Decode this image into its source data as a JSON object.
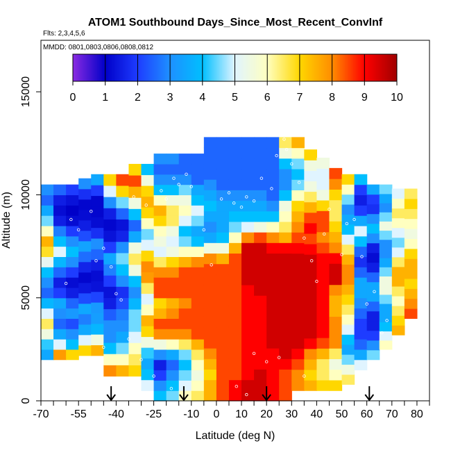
{
  "chart_data": {
    "type": "heatmap",
    "title": "ATOM1 Southbound Days_Since_Most_Recent_ConvInf",
    "subtitle": "Flts: 2,3,4,5,6",
    "annotation": "MMDD: 0801,0803,0806,0808,0812",
    "xlabel": "Latitude (deg N)",
    "ylabel": "Altitude (m)",
    "xlim": [
      -70,
      85
    ],
    "ylim": [
      0,
      17500
    ],
    "x_ticks": [
      -70,
      -55,
      -40,
      -25,
      -10,
      0,
      10,
      20,
      30,
      40,
      50,
      60,
      70,
      80
    ],
    "y_ticks": [
      0,
      5000,
      10000,
      15000
    ],
    "colorbar": {
      "min": 0,
      "max": 10,
      "ticks": [
        0,
        1,
        2,
        3,
        4,
        5,
        6,
        7,
        8,
        9,
        10
      ],
      "colors": [
        "#8a2be2",
        "#0000c8",
        "#1e3cff",
        "#1e90ff",
        "#00bfff",
        "#e0f4ff",
        "#ffffc0",
        "#ffd700",
        "#ff8c00",
        "#ff0000",
        "#a00000"
      ]
    },
    "arrow_latitudes": [
      -42,
      -13,
      20,
      61
    ],
    "colors": {
      "axis": "#000000",
      "background": "#ffffff",
      "sample_marker": "#ffffff"
    },
    "profiles": [
      {
        "lat": -67.5,
        "alt_min": 2000,
        "alt_max": 10500,
        "values": [
          3.5,
          4.2,
          5.5,
          6.5,
          5,
          3.8,
          2.5,
          3,
          4,
          5.2,
          6.8,
          7.5,
          6,
          4.5,
          3.5,
          2.5,
          3
        ]
      },
      {
        "lat": -62.5,
        "alt_min": 2000,
        "alt_max": 10500,
        "values": [
          7.8,
          5,
          3.5,
          2.5,
          3,
          3.5,
          2,
          1.5,
          2.5,
          3.8,
          5,
          4,
          2.8,
          1.5,
          1.2,
          1.5,
          2.5
        ]
      },
      {
        "lat": -57.5,
        "alt_min": 2000,
        "alt_max": 10500,
        "values": [
          7,
          4,
          3,
          2.2,
          3.2,
          2.5,
          1.5,
          1.2,
          2,
          3,
          4,
          3,
          2,
          1.2,
          1,
          1.3,
          2
        ]
      },
      {
        "lat": -52.5,
        "alt_min": 2200,
        "alt_max": 10800,
        "values": [
          7,
          5,
          3.5,
          2.8,
          3.5,
          2.2,
          1.4,
          1.1,
          1.6,
          2.6,
          3.4,
          2.2,
          1.5,
          1.2,
          1.1,
          1.8,
          3
        ]
      },
      {
        "lat": -47.5,
        "alt_min": 2200,
        "alt_max": 11000,
        "values": [
          7.5,
          5.5,
          3.8,
          3.3,
          3.2,
          2.1,
          1.3,
          1.2,
          1.5,
          2.5,
          3,
          1.8,
          1.2,
          1.1,
          1.1,
          2,
          3.5
        ]
      },
      {
        "lat": -42.5,
        "alt_min": 1200,
        "alt_max": 11000,
        "values": [
          8,
          6,
          4,
          3,
          3,
          2.4,
          1.5,
          1.3,
          2,
          2.8,
          3.5,
          2,
          1.3,
          1.1,
          1.5,
          3,
          5,
          7
        ]
      },
      {
        "lat": -37.5,
        "alt_min": 1200,
        "alt_max": 11000,
        "values": [
          7.5,
          6,
          4.5,
          3.5,
          3,
          2.8,
          2.2,
          1.8,
          3,
          4,
          4.5,
          3,
          1.6,
          1.3,
          2.5,
          4.5,
          7,
          8.5
        ]
      },
      {
        "lat": -32.5,
        "alt_min": 1200,
        "alt_max": 11500,
        "values": [
          7,
          6.5,
          6,
          5,
          4.5,
          4.5,
          3.8,
          3,
          4,
          5.5,
          6.5,
          5.5,
          3.5,
          2.5,
          4,
          5.5,
          7.5,
          8.5,
          7
        ]
      },
      {
        "lat": -27.5,
        "alt_min": 500,
        "alt_max": 11500,
        "values": [
          5,
          4,
          3.5,
          4.2,
          5.5,
          7,
          7.5,
          6,
          5,
          6.5,
          7.8,
          8,
          7,
          5,
          4.5,
          6,
          7,
          7.5,
          7,
          5.5,
          4
        ]
      },
      {
        "lat": -22.5,
        "alt_min": 0,
        "alt_max": 12000,
        "values": [
          4,
          3,
          2,
          1.5,
          3,
          5.5,
          8,
          8.5,
          7.5,
          7,
          8.5,
          8.5,
          8,
          6.5,
          5,
          5.5,
          6,
          7,
          7.5,
          6,
          4,
          3,
          2.5,
          3
        ]
      },
      {
        "lat": -17.5,
        "alt_min": 0,
        "alt_max": 12000,
        "values": [
          4.5,
          4,
          3,
          2.5,
          3.5,
          6,
          8,
          8.5,
          8,
          7.5,
          8.5,
          8.5,
          8,
          7,
          5.5,
          5,
          5.5,
          6.5,
          6.5,
          5.5,
          4,
          3,
          2.5,
          3
        ]
      },
      {
        "lat": -12.5,
        "alt_min": 0,
        "alt_max": 12000,
        "values": [
          6,
          5,
          4.5,
          4,
          4.5,
          6.5,
          8,
          8.5,
          8.5,
          8,
          8.5,
          8.5,
          8.5,
          7.5,
          6,
          4.5,
          4,
          5,
          6,
          5.5,
          4.5,
          3,
          2.5,
          2.5
        ]
      },
      {
        "lat": -7.5,
        "alt_min": 0,
        "alt_max": 12000,
        "values": [
          6.5,
          6,
          5.5,
          6,
          6.5,
          7.5,
          8.5,
          8.5,
          8.5,
          8.5,
          8.5,
          8.5,
          8.5,
          8,
          6,
          4,
          3.5,
          4.5,
          5,
          4,
          3.5,
          2.5,
          2.5,
          2.5
        ]
      },
      {
        "lat": -2.5,
        "alt_min": 0,
        "alt_max": 12800,
        "values": [
          7.5,
          7.5,
          7,
          7.5,
          8,
          8.5,
          8.5,
          8.5,
          8.5,
          8.5,
          8.5,
          8.5,
          8.5,
          8,
          5.5,
          3.5,
          3,
          3.5,
          4,
          3.5,
          3,
          2.5,
          2.5,
          2.5,
          2.5
        ]
      },
      {
        "lat": 2.5,
        "alt_min": 0,
        "alt_max": 12800,
        "values": [
          8.5,
          8.5,
          8.5,
          8.5,
          8.5,
          8.5,
          8.5,
          8.5,
          8.5,
          8.5,
          8.5,
          8.5,
          8.5,
          7.5,
          5.5,
          4,
          3.5,
          3.5,
          3.5,
          3,
          2.5,
          2.5,
          2.5,
          2.5,
          2.5
        ]
      },
      {
        "lat": 7.5,
        "alt_min": 0,
        "alt_max": 12800,
        "values": [
          9,
          9,
          8.5,
          8.5,
          8.5,
          8.5,
          8.5,
          8.5,
          8.5,
          8.5,
          8.5,
          8.5,
          8.5,
          8.5,
          7.5,
          6,
          4.5,
          4,
          3.5,
          3,
          2.5,
          2.5,
          2.5,
          2.5,
          2.5
        ]
      },
      {
        "lat": 12.5,
        "alt_min": 0,
        "alt_max": 12800,
        "values": [
          9.5,
          9.5,
          9,
          9,
          9,
          9,
          9,
          9,
          9,
          9,
          9,
          9.5,
          9.5,
          9.5,
          9.5,
          8,
          5,
          4,
          3.5,
          3,
          2.5,
          2.5,
          2.5,
          2.5,
          2.5
        ]
      },
      {
        "lat": 17.5,
        "alt_min": 0,
        "alt_max": 12800,
        "values": [
          9.5,
          9.5,
          9.5,
          9,
          9,
          9,
          9,
          9,
          9,
          9,
          9.5,
          9.5,
          9.5,
          9.5,
          9.5,
          8.5,
          5.5,
          4,
          3.5,
          3,
          2.5,
          2.5,
          2.5,
          2.5,
          2.5
        ]
      },
      {
        "lat": 22.5,
        "alt_min": 0,
        "alt_max": 12800,
        "values": [
          9,
          9,
          9,
          9,
          9,
          9.5,
          9.5,
          9.5,
          9.5,
          9.5,
          9.5,
          9.5,
          9.5,
          9.5,
          9,
          8,
          6,
          4,
          3,
          2.5,
          2.5,
          2.5,
          2.5,
          2.5,
          2.5
        ]
      },
      {
        "lat": 27.5,
        "alt_min": 0,
        "alt_max": 12800,
        "values": [
          8.5,
          8.5,
          8.5,
          9,
          9.5,
          9.5,
          9.5,
          9.5,
          9.5,
          9.5,
          9.5,
          9.5,
          9.5,
          9.5,
          9,
          7.5,
          6.5,
          6,
          5.5,
          4,
          3,
          3,
          4,
          5.5,
          6.5
        ]
      },
      {
        "lat": 32.5,
        "alt_min": 500,
        "alt_max": 12800,
        "values": [
          8,
          8,
          8.5,
          9,
          9.5,
          9.5,
          9.5,
          9.5,
          9.5,
          9.5,
          9.5,
          9.5,
          9.5,
          9,
          8.5,
          8,
          7.5,
          7,
          6,
          4.5,
          4,
          4.5,
          6,
          7.5
        ]
      },
      {
        "lat": 37.5,
        "alt_min": 500,
        "alt_max": 12200,
        "values": [
          7.5,
          7,
          7.5,
          8,
          9,
          9.5,
          9.5,
          9.5,
          9.5,
          9.5,
          9.5,
          9.5,
          9.5,
          9,
          8.5,
          9,
          8.5,
          7.5,
          6.5,
          5.5,
          5,
          5.5,
          7
        ]
      },
      {
        "lat": 42.5,
        "alt_min": 500,
        "alt_max": 11800,
        "values": [
          7,
          6.5,
          6.5,
          7.5,
          8.5,
          9,
          9,
          9,
          9,
          9,
          9,
          9,
          9,
          8.5,
          8,
          8.5,
          8.5,
          7,
          5.5,
          5,
          5,
          5.5
        ]
      },
      {
        "lat": 47.5,
        "alt_min": 500,
        "alt_max": 11300,
        "values": [
          7,
          6,
          5.5,
          6.5,
          8,
          8,
          8,
          7.5,
          7.5,
          8,
          9.5,
          9.5,
          9,
          8,
          7.5,
          7,
          6.5,
          6.5,
          7,
          8,
          8.5
        ]
      },
      {
        "lat": 52.5,
        "alt_min": 800,
        "alt_max": 11000,
        "values": [
          6.5,
          5.5,
          4.5,
          3.5,
          4,
          5,
          6,
          6.5,
          7,
          7.5,
          8,
          8,
          7.5,
          6.5,
          5,
          4,
          3.5,
          3,
          4.5,
          6,
          7
        ]
      },
      {
        "lat": 57.5,
        "alt_min": 1500,
        "alt_max": 11000,
        "values": [
          5,
          3.5,
          2.5,
          2,
          2,
          2.5,
          3,
          3.5,
          3.5,
          2.5,
          1.8,
          2.5,
          4,
          5,
          3.5,
          2,
          1.5,
          2,
          4
        ]
      },
      {
        "lat": 62.5,
        "alt_min": 2000,
        "alt_max": 10500,
        "values": [
          4.5,
          3,
          2,
          1.5,
          1.5,
          2.5,
          3.5,
          3.5,
          2.5,
          1.5,
          1.2,
          1.5,
          3,
          4,
          3,
          1.8,
          2,
          3.5
        ]
      },
      {
        "lat": 67.5,
        "alt_min": 2500,
        "alt_max": 10500,
        "values": [
          6,
          5,
          4,
          3.5,
          3.5,
          4.5,
          5.5,
          5.5,
          4.5,
          3.5,
          3,
          3,
          4.5,
          5.5,
          4.5,
          3,
          3.5,
          4.5
        ]
      },
      {
        "lat": 72.5,
        "alt_min": 3200,
        "alt_max": 10300,
        "values": [
          7.5,
          7,
          6.5,
          6,
          6.5,
          7.5,
          7.5,
          6.5,
          5,
          4.5,
          5,
          6,
          6.5,
          6,
          5
        ]
      },
      {
        "lat": 77.5,
        "alt_min": 4000,
        "alt_max": 10300,
        "values": [
          8.5,
          8,
          7.5,
          7,
          7.5,
          7.5,
          7,
          6,
          5.5,
          6,
          6.5,
          7,
          6.5
        ]
      }
    ],
    "sample_points": [
      [
        -58,
        8800
      ],
      [
        -55,
        8300
      ],
      [
        -50,
        9200
      ],
      [
        -48,
        6800
      ],
      [
        -45,
        7400
      ],
      [
        -42,
        6500
      ],
      [
        -40,
        5200
      ],
      [
        -38,
        4900
      ],
      [
        -35,
        3000
      ],
      [
        -33,
        9900
      ],
      [
        -28,
        9500
      ],
      [
        -22,
        10200
      ],
      [
        -20,
        9800
      ],
      [
        -17,
        10800
      ],
      [
        -15,
        10500
      ],
      [
        -12,
        11000
      ],
      [
        -10,
        10400
      ],
      [
        -5,
        8300
      ],
      [
        -2,
        6600
      ],
      [
        2,
        9800
      ],
      [
        5,
        10100
      ],
      [
        7,
        9600
      ],
      [
        10,
        9400
      ],
      [
        12,
        9900
      ],
      [
        15,
        9700
      ],
      [
        18,
        10800
      ],
      [
        22,
        10300
      ],
      [
        24,
        11900
      ],
      [
        27,
        12700
      ],
      [
        28,
        12200
      ],
      [
        30,
        11500
      ],
      [
        33,
        10600
      ],
      [
        35,
        7900
      ],
      [
        38,
        6800
      ],
      [
        40,
        5800
      ],
      [
        43,
        8100
      ],
      [
        45,
        9300
      ],
      [
        50,
        7100
      ],
      [
        52,
        8600
      ],
      [
        55,
        8800
      ],
      [
        58,
        7000
      ],
      [
        60,
        4700
      ],
      [
        63,
        5300
      ],
      [
        66,
        3300
      ],
      [
        68,
        3900
      ],
      [
        -30,
        2000
      ],
      [
        -25,
        1200
      ],
      [
        -18,
        600
      ],
      [
        15,
        2300
      ],
      [
        20,
        1900
      ],
      [
        25,
        2100
      ],
      [
        8,
        700
      ],
      [
        12,
        300
      ],
      [
        35,
        1200
      ],
      [
        -60,
        5700
      ],
      [
        -45,
        2600
      ]
    ]
  }
}
